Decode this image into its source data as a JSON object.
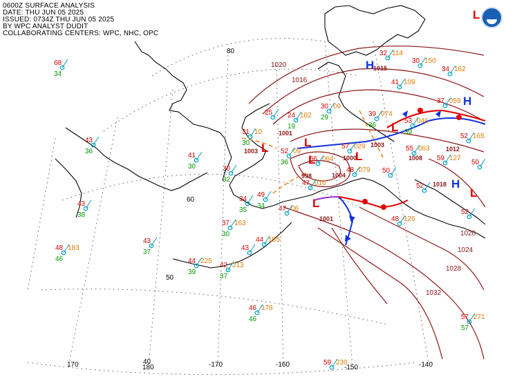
{
  "header": {
    "line1": "0600Z SURFACE ANALYSIS",
    "line2": "DATE: THU JUN 05 2025",
    "line3": "ISSUED: 0734Z THU JUN 05 2025",
    "line4": "BY WPC ANALYST DUDIT",
    "line5": "COLLABORATING CENTERS: WPC, NHC, OPC"
  },
  "graticule_labels": {
    "lat80": "80",
    "lat60": "60",
    "lat50": "50",
    "lat40": "40",
    "lon170": "170",
    "lon180": "180",
    "lon_170": "-170",
    "lon_160": "-160",
    "lon_150": "-150",
    "lon_140": "-140"
  },
  "isobar_labels": [
    "1020",
    "1016",
    "1020",
    "1024",
    "1028",
    "1032"
  ],
  "pressure_centers": [
    {
      "type": "L",
      "value": ""
    },
    {
      "type": "H",
      "value": "1015"
    },
    {
      "type": "H",
      "value": ""
    },
    {
      "type": "L",
      "value": "1001"
    },
    {
      "type": "L",
      "value": "1003"
    },
    {
      "type": "L",
      "value": "1003"
    },
    {
      "type": "L",
      "value": "998"
    },
    {
      "type": "L",
      "value": "1001"
    },
    {
      "type": "L",
      "value": "1000"
    },
    {
      "type": "L",
      "value": "1004"
    },
    {
      "type": "L",
      "value": "1008"
    },
    {
      "type": "L",
      "value": "1012"
    },
    {
      "type": "H",
      "value": "1018"
    },
    {
      "type": "L",
      "value": ""
    }
  ],
  "stations": [
    {
      "t": "68",
      "d": "34",
      "p": ""
    },
    {
      "t": "41",
      "d": "30",
      "p": ""
    },
    {
      "t": "43",
      "d": "36",
      "p": ""
    },
    {
      "t": "43",
      "d": "38",
      "p": ""
    },
    {
      "t": "48",
      "d": "46",
      "p": "183"
    },
    {
      "t": "43",
      "d": "37",
      "p": ""
    },
    {
      "t": "44",
      "d": "39",
      "p": "225"
    },
    {
      "t": "42",
      "d": "37",
      "p": "213"
    },
    {
      "t": "43",
      "d": "",
      "p": ""
    },
    {
      "t": "44",
      "d": "",
      "p": "155"
    },
    {
      "t": "37",
      "d": "30",
      "p": "163"
    },
    {
      "t": "46",
      "d": "46",
      "p": "178"
    },
    {
      "t": "59",
      "d": "",
      "p": "230"
    },
    {
      "t": "31",
      "d": "30",
      "p": "10"
    },
    {
      "t": "25",
      "d": "",
      "p": ""
    },
    {
      "t": "24",
      "d": "19",
      "p": "102"
    },
    {
      "t": "30",
      "d": "29",
      "p": "09"
    },
    {
      "t": "52",
      "d": "36",
      "p": "09"
    },
    {
      "t": "57",
      "d": "",
      "p": "029"
    },
    {
      "t": "56",
      "d": "",
      "p": "064"
    },
    {
      "t": "48",
      "d": "",
      "p": "079"
    },
    {
      "t": "47",
      "d": "",
      "p": "016"
    },
    {
      "t": "47",
      "d": "",
      "p": "06"
    },
    {
      "t": "49",
      "d": "34",
      "p": ""
    },
    {
      "t": "30",
      "d": "32",
      "p": ""
    },
    {
      "t": "34",
      "d": "35",
      "p": ""
    },
    {
      "t": "39",
      "d": "36",
      "p": "074"
    },
    {
      "t": "53",
      "d": "39",
      "p": "046"
    },
    {
      "t": "55",
      "d": "",
      "p": "063"
    },
    {
      "t": "50",
      "d": "",
      "p": ""
    },
    {
      "t": "52",
      "d": "",
      "p": ""
    },
    {
      "t": "59",
      "d": "",
      "p": "127"
    },
    {
      "t": "52",
      "d": "",
      "p": "165"
    },
    {
      "t": "50",
      "d": "",
      "p": ""
    },
    {
      "t": "37",
      "d": "",
      "p": "059"
    },
    {
      "t": "41",
      "d": "",
      "p": "109"
    },
    {
      "t": "30",
      "d": "",
      "p": "150"
    },
    {
      "t": "34",
      "d": "",
      "p": "162"
    },
    {
      "t": "32",
      "d": "",
      "p": "114"
    },
    {
      "t": "57",
      "d": "57",
      "p": "271"
    },
    {
      "t": "52",
      "d": "",
      "p": ""
    },
    {
      "t": "48",
      "d": "",
      "p": "126"
    }
  ],
  "colors": {
    "temperature": "#d40000",
    "dewpoint": "#009900",
    "pressure": "#e07a00",
    "isobar": "#8b1414",
    "cold_front": "#1030e0",
    "warm_front": "#e00000",
    "occluded": "#9a2ad9",
    "low": "#e00000",
    "high": "#1030e0"
  }
}
